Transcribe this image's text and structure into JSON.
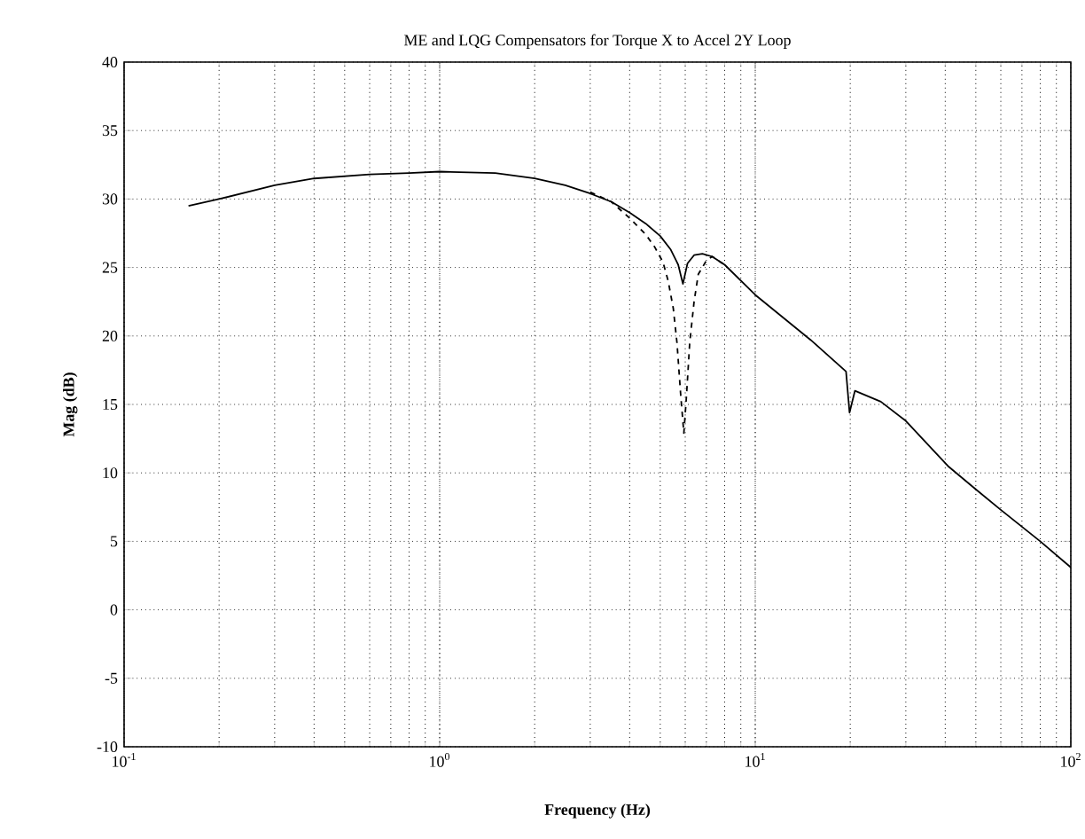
{
  "chart_data": {
    "type": "line",
    "title": "ME and LQG Compensators for Torque X to Accel 2Y Loop",
    "xlabel": "Frequency (Hz)",
    "ylabel": "Mag (dB)",
    "log": "x",
    "grid": true,
    "xlim": [
      0.1,
      100
    ],
    "ylim": [
      -10,
      40
    ],
    "xticks": [
      {
        "value": 0.1,
        "label": "10$^{-1}$"
      },
      {
        "value": 1,
        "label": "10$^{0}$"
      },
      {
        "value": 10,
        "label": "10$^{1}$"
      },
      {
        "value": 100,
        "label": "10$^{2}$"
      }
    ],
    "yticks": [
      -10,
      -5,
      0,
      5,
      10,
      15,
      20,
      25,
      30,
      35,
      40
    ],
    "series": [
      {
        "color": "#000000",
        "line_style": "dashed",
        "x": [
          3,
          3.5,
          4,
          4.5,
          4.8,
          5.1,
          5.3,
          5.5,
          5.65,
          5.8,
          5.94,
          6.05,
          6.2,
          6.4,
          6.6,
          7,
          7.3,
          8
        ],
        "values": [
          30.5,
          29.8,
          28.6,
          27.4,
          26.5,
          25.4,
          24,
          22,
          19.5,
          15.8,
          12.9,
          15.5,
          19.5,
          22.5,
          24.5,
          25.5,
          25.8,
          25.2
        ]
      },
      {
        "color": "#000000",
        "line_style": "solid",
        "x": [
          0.16,
          0.2,
          0.3,
          0.4,
          0.6,
          0.8,
          1,
          1.5,
          2,
          2.5,
          3,
          3.5,
          4,
          4.5,
          5,
          5.4,
          5.7,
          5.9,
          6.1,
          6.4,
          6.8,
          7.3,
          8,
          10,
          15,
          19.4,
          19.9,
          20.7,
          25,
          30,
          40.8,
          50,
          60,
          80,
          100
        ],
        "values": [
          29.5,
          30,
          31,
          31.5,
          31.8,
          31.9,
          32,
          31.9,
          31.5,
          31,
          30.4,
          29.8,
          29,
          28.2,
          27.3,
          26.3,
          25.2,
          23.8,
          25.3,
          25.9,
          26,
          25.8,
          25.2,
          23,
          19.7,
          17.4,
          14.4,
          16,
          15.2,
          13.8,
          10.5,
          8.8,
          7.3,
          5,
          3.1
        ]
      }
    ]
  }
}
